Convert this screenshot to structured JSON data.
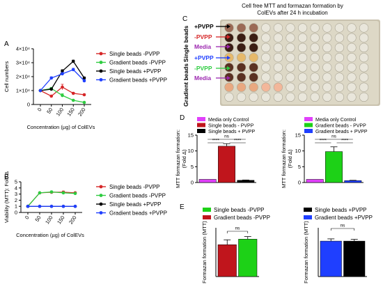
{
  "colors": {
    "single_minus": "#d62728",
    "gradient_minus": "#2ecc40",
    "single_plus": "#000000",
    "gradient_plus": "#1f3fff",
    "media": "#e040fb"
  },
  "chart_data": [
    {
      "id": "A",
      "type": "line",
      "panel_label": "A",
      "x": [
        0,
        50,
        100,
        150,
        200
      ],
      "xlabel": "Concentration (µg) of ColEVs",
      "ylabel": "Cell numbers",
      "ylim": [
        0,
        40000
      ],
      "yticks": [
        "0",
        "1×10⁴",
        "2×10⁴",
        "3×10⁴",
        "4×10⁴"
      ],
      "series": [
        {
          "name": "Single beads -PVPP",
          "color": "#d62728",
          "values": [
            10000,
            6000,
            12500,
            8000,
            7000
          ],
          "errors": [
            0,
            500,
            2000,
            800,
            600
          ]
        },
        {
          "name": "Gradient beads -PVPP",
          "color": "#2ecc40",
          "values": [
            10000,
            11500,
            6500,
            3000,
            1500
          ],
          "errors": [
            0,
            800,
            1200,
            600,
            400
          ]
        },
        {
          "name": "Single beads +PVPP",
          "color": "#000000",
          "values": [
            10000,
            11000,
            24000,
            31000,
            19000
          ],
          "errors": [
            0,
            800,
            1000,
            900,
            800
          ]
        },
        {
          "name": "Gradient beads +PVPP",
          "color": "#1f3fff",
          "values": [
            10000,
            19000,
            22000,
            25000,
            17000
          ],
          "errors": [
            0,
            900,
            1000,
            1000,
            900
          ]
        }
      ]
    },
    {
      "id": "B",
      "type": "line",
      "panel_label": "B",
      "x": [
        0,
        50,
        100,
        150,
        200
      ],
      "xlabel": "Concentration (µg) of ColEVs",
      "ylabel": "Viability (MTT): Fold Δ",
      "ylim": [
        0,
        5
      ],
      "yticks": [
        "0",
        "1",
        "2",
        "3",
        "4",
        "5"
      ],
      "series": [
        {
          "name": "Single beads -PVPP",
          "color": "#d62728",
          "values": [
            1,
            3.2,
            3.3,
            3.3,
            3.2
          ],
          "errors": [
            0,
            0.1,
            0.15,
            0.2,
            0.15
          ]
        },
        {
          "name": "Gradient beads -PVPP",
          "color": "#2ecc40",
          "values": [
            1,
            3.2,
            3.35,
            3.2,
            3.1
          ],
          "errors": [
            0,
            0.1,
            0.15,
            0.15,
            0.1
          ]
        },
        {
          "name": "Single beads +PVPP",
          "color": "#000000",
          "values": [
            1,
            1,
            1,
            1,
            1
          ],
          "errors": [
            0,
            0.05,
            0.05,
            0.05,
            0.05
          ]
        },
        {
          "name": "Gradient beads +PVPP",
          "color": "#1f3fff",
          "values": [
            1,
            1,
            1,
            1,
            1
          ],
          "errors": [
            0,
            0.05,
            0.05,
            0.05,
            0.05
          ]
        }
      ]
    },
    {
      "id": "D1",
      "type": "bar",
      "panel_label": "D",
      "categories": [
        "Media only Control",
        "Single beads - PVPP",
        "Single beads + PVPP"
      ],
      "colors": [
        "#e040fb",
        "#c0151c",
        "#000000"
      ],
      "values": [
        1,
        11.5,
        0.7
      ],
      "errors": [
        0,
        0.8,
        0.1
      ],
      "ylabel": "MTT formazan formation: (Fold Δ)",
      "ylim": [
        0,
        15
      ],
      "yticks": [
        "0",
        "5",
        "10",
        "15"
      ],
      "significance": {
        "top": "ns",
        "left": "****",
        "right": "****"
      }
    },
    {
      "id": "D2",
      "type": "bar",
      "categories": [
        "Media only Control",
        "Gradient beads - PVPP",
        "Gradient beads + PVPP"
      ],
      "colors": [
        "#e040fb",
        "#1dd117",
        "#1f3fff"
      ],
      "values": [
        1,
        9.8,
        0.6
      ],
      "errors": [
        0,
        1.5,
        0.1
      ],
      "ylabel": "MTT formazan formation: (Fold Δ)",
      "ylim": [
        0,
        15
      ],
      "yticks": [
        "0",
        "5",
        "10",
        "15"
      ],
      "significance": {
        "top": "ns",
        "left": "****",
        "right": "****"
      }
    },
    {
      "id": "E1",
      "type": "bar",
      "panel_label": "E",
      "categories": [
        "Gradient beads -PVPP",
        "Single beads -PVPP"
      ],
      "colors": [
        "#c0151c",
        "#1dd117"
      ],
      "values": [
        9.8,
        11.5
      ],
      "errors": [
        1.5,
        0.8
      ],
      "legend": [
        "Single beads -PVPP",
        "Gradient beads -PVPP"
      ],
      "ylabel": "Formazan formation (MTT)",
      "ylim": [
        0,
        15
      ],
      "significance": {
        "top": "ns"
      }
    },
    {
      "id": "E2",
      "type": "bar",
      "categories": [
        "Gradient beads +PVPP",
        "Single beads +PVPP"
      ],
      "colors": [
        "#1f3fff",
        "#000000"
      ],
      "values": [
        0.8,
        0.8
      ],
      "errors": [
        0.05,
        0.04
      ],
      "legend": [
        "Single beads +PVPP",
        "Gradient beads +PVPP"
      ],
      "ylabel": "Formazan formation (MTT)",
      "ylim": [
        0,
        1.1
      ],
      "significance": {
        "top": "ns"
      }
    }
  ],
  "panel_c": {
    "letter": "C",
    "title_line1": "Cell free MTT and formazan formation by",
    "title_line2": "ColEVs after 24 h incubation",
    "group_single": "Single beads",
    "group_gradient": "Gradient beads",
    "rows": [
      {
        "label": "+PVPP",
        "color": "#000000"
      },
      {
        "label": "-PVPP",
        "color": "#d62728"
      },
      {
        "label": "Media",
        "color": "#9c27b0"
      },
      {
        "label": "+PVPP",
        "color": "#1f3fff"
      },
      {
        "label": "-PVPP",
        "color": "#2ecc40"
      },
      {
        "label": "Media",
        "color": "#9c27b0"
      }
    ]
  }
}
